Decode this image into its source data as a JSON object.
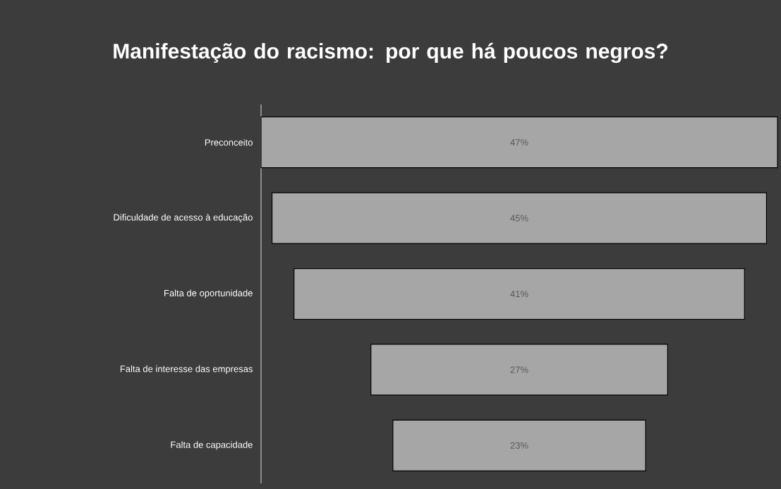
{
  "chart_data": {
    "type": "other",
    "title": "Manifestação do racismo: por que há poucos negros?",
    "categories": [
      "Preconceito",
      "Dificuldade de acesso à educação",
      "Falta de oportunidade",
      "Falta de interesse das empresas",
      "Falta de capacidade"
    ],
    "values": [
      47,
      45,
      41,
      27,
      23
    ],
    "value_labels": [
      "47%",
      "45%",
      "41%",
      "27%",
      "23%"
    ],
    "color": "#a6a6a6"
  }
}
